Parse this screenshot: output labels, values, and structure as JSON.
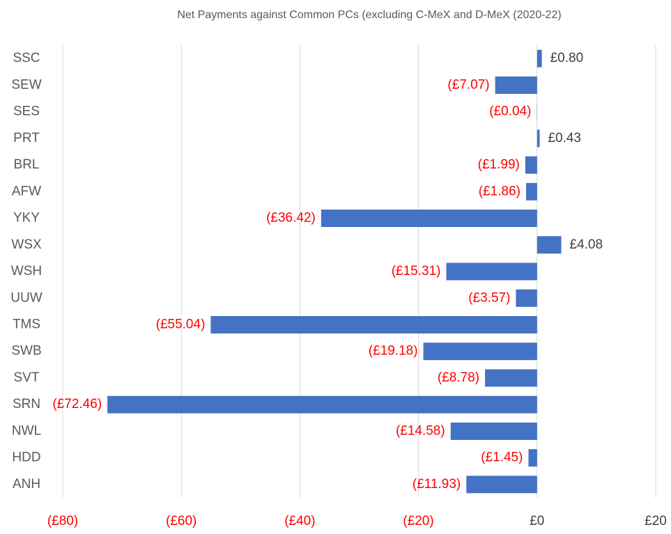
{
  "chart_data": {
    "type": "hbar",
    "title": "Net Payments against Common PCs (excluding C-MeX and D-MeX (2020-22)",
    "categories": [
      "SSC",
      "SEW",
      "SES",
      "PRT",
      "BRL",
      "AFW",
      "YKY",
      "WSX",
      "WSH",
      "UUW",
      "TMS",
      "SWB",
      "SVT",
      "SRN",
      "NWL",
      "HDD",
      "ANH"
    ],
    "values": [
      0.8,
      -7.07,
      -0.04,
      0.43,
      -1.99,
      -1.86,
      -36.42,
      4.08,
      -15.31,
      -3.57,
      -55.04,
      -19.18,
      -8.78,
      -72.46,
      -14.58,
      -1.45,
      -11.93
    ],
    "value_labels": [
      "£0.80",
      "(£7.07)",
      "(£0.04)",
      "£0.43",
      "(£1.99)",
      "(£1.86)",
      "(£36.42)",
      "£4.08",
      "(£15.31)",
      "(£3.57)",
      "(£55.04)",
      "(£19.18)",
      "(£8.78)",
      "(£72.46)",
      "(£14.58)",
      "(£1.45)",
      "(£11.93)"
    ],
    "color": "#4472c4",
    "label_colors": {
      "positive": "#404040",
      "negative": "#ff0000"
    },
    "xlim": [
      -80,
      20
    ],
    "xticks": [
      {
        "value": -80,
        "label": "(£80)"
      },
      {
        "value": -60,
        "label": "(£60)"
      },
      {
        "value": -40,
        "label": "(£40)"
      },
      {
        "value": -20,
        "label": "(£20)"
      },
      {
        "value": 0,
        "label": "£0"
      },
      {
        "value": 20,
        "label": "£20"
      }
    ],
    "grid": true
  }
}
